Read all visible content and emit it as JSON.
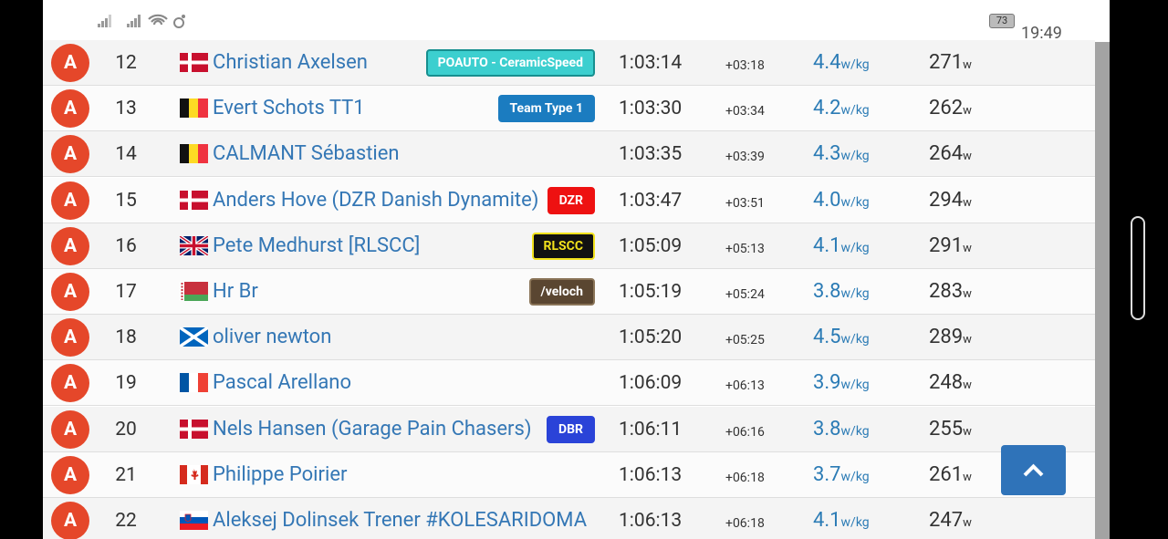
{
  "status_bar": {
    "battery": "73",
    "time": "19:49"
  },
  "table": {
    "rows": [
      {
        "category": "A",
        "position": "12",
        "name": "Christian Axelsen",
        "team": {
          "name": "POAUTO - CeramicSpeed",
          "color": "#3ccfcf",
          "text_color": "#ffffff",
          "border": "#178f8f"
        },
        "time": "1:03:14",
        "gap": "+03:18",
        "wkg": "4.4",
        "wkg_unit": "w/kg",
        "watts": "271",
        "watts_unit": "w"
      },
      {
        "category": "A",
        "position": "13",
        "name": "Evert Schots TT1",
        "team": {
          "name": "Team Type 1",
          "color": "#1b7cc0",
          "text_color": "#ffffff",
          "border": "#1b7cc0"
        },
        "time": "1:03:30",
        "gap": "+03:34",
        "wkg": "4.2",
        "wkg_unit": "w/kg",
        "watts": "262",
        "watts_unit": "w"
      },
      {
        "category": "A",
        "position": "14",
        "name": "CALMANT Sébastien",
        "team": null,
        "time": "1:03:35",
        "gap": "+03:39",
        "wkg": "4.3",
        "wkg_unit": "w/kg",
        "watts": "264",
        "watts_unit": "w"
      },
      {
        "category": "A",
        "position": "15",
        "name": "Anders Hove (DZR Danish Dynamite)",
        "team": {
          "name": "DZR",
          "color": "#ee1111",
          "text_color": "#ffffff",
          "border": "#ee1111"
        },
        "time": "1:03:47",
        "gap": "+03:51",
        "wkg": "4.0",
        "wkg_unit": "w/kg",
        "watts": "294",
        "watts_unit": "w"
      },
      {
        "category": "A",
        "position": "16",
        "name": "Pete Medhurst [RLSCC]",
        "team": {
          "name": "RLSCC",
          "color": "#111111",
          "text_color": "#f2e21c",
          "border": "#f2e21c"
        },
        "time": "1:05:09",
        "gap": "+05:13",
        "wkg": "4.1",
        "wkg_unit": "w/kg",
        "watts": "291",
        "watts_unit": "w"
      },
      {
        "category": "A",
        "position": "17",
        "name": "Hr Br",
        "team": {
          "name": "/veloch",
          "color": "#5a4631",
          "text_color": "#ffffff",
          "border": "#8a7458"
        },
        "time": "1:05:19",
        "gap": "+05:24",
        "wkg": "3.8",
        "wkg_unit": "w/kg",
        "watts": "283",
        "watts_unit": "w"
      },
      {
        "category": "A",
        "position": "18",
        "name": "oliver newton",
        "team": null,
        "time": "1:05:20",
        "gap": "+05:25",
        "wkg": "4.5",
        "wkg_unit": "w/kg",
        "watts": "289",
        "watts_unit": "w"
      },
      {
        "category": "A",
        "position": "19",
        "name": "Pascal Arellano",
        "team": null,
        "time": "1:06:09",
        "gap": "+06:13",
        "wkg": "3.9",
        "wkg_unit": "w/kg",
        "watts": "248",
        "watts_unit": "w"
      },
      {
        "category": "A",
        "position": "20",
        "name": "Nels Hansen (Garage Pain Chasers)",
        "team": {
          "name": "DBR",
          "color": "#2a43d8",
          "text_color": "#ffffff",
          "border": "#2a43d8"
        },
        "time": "1:06:11",
        "gap": "+06:16",
        "wkg": "3.8",
        "wkg_unit": "w/kg",
        "watts": "255",
        "watts_unit": "w"
      },
      {
        "category": "A",
        "position": "21",
        "name": "Philippe Poirier",
        "team": null,
        "time": "1:06:13",
        "gap": "+06:18",
        "wkg": "3.7",
        "wkg_unit": "w/kg",
        "watts": "261",
        "watts_unit": "w"
      },
      {
        "category": "A",
        "position": "22",
        "name": "Aleksej Dolinsek Trener #KOLESARIDOMA",
        "team": null,
        "time": "1:06:13",
        "gap": "+06:18",
        "wkg": "4.1",
        "wkg_unit": "w/kg",
        "watts": "247",
        "watts_unit": "w"
      }
    ]
  }
}
